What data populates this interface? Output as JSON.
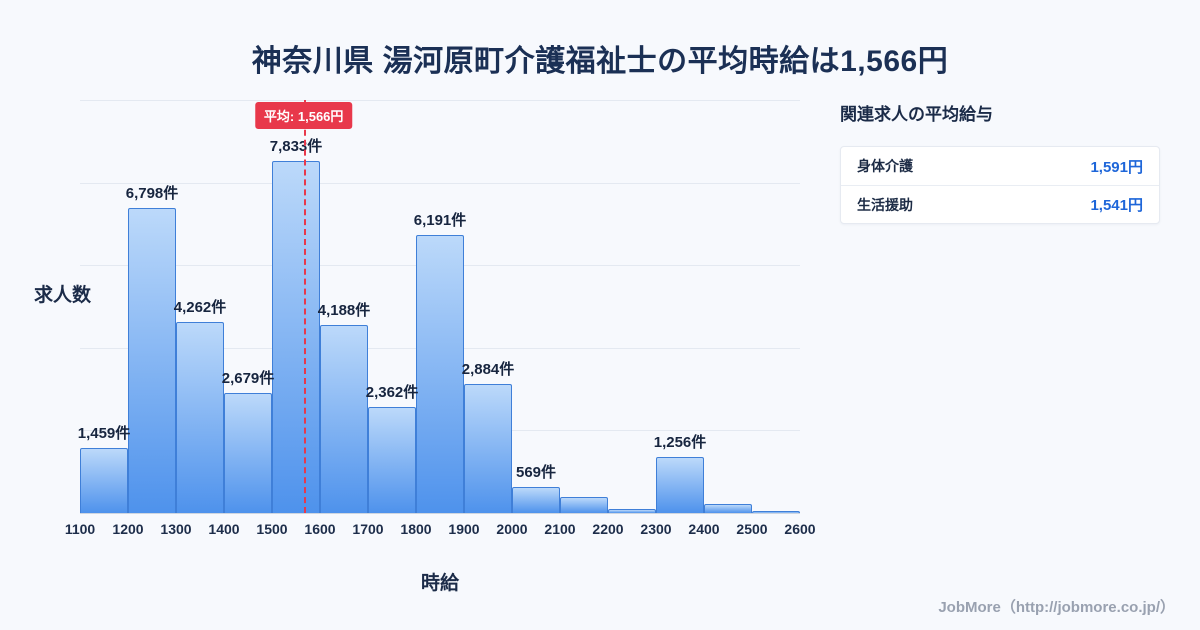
{
  "page": {
    "title": "神奈川県 湯河原町介護福祉士の平均時給は1,566円",
    "footer": "JobMore（http://jobmore.co.jp/）"
  },
  "chart_data": {
    "type": "bar",
    "title": "神奈川県 湯河原町介護福祉士の平均時給は1,566円",
    "xlabel": "時給",
    "ylabel": "求人数",
    "xlim": [
      1100,
      2600
    ],
    "ylim": [
      0,
      9200
    ],
    "grid": true,
    "legend": "none",
    "x_ticks": [
      "1100",
      "1200",
      "1300",
      "1400",
      "1500",
      "1600",
      "1700",
      "1800",
      "1900",
      "2000",
      "2100",
      "2200",
      "2300",
      "2400",
      "2500",
      "2600"
    ],
    "bins": [
      {
        "range": "1100-1200",
        "value": 1459,
        "label": "1,459件"
      },
      {
        "range": "1200-1300",
        "value": 6798,
        "label": "6,798件"
      },
      {
        "range": "1300-1400",
        "value": 4262,
        "label": "4,262件"
      },
      {
        "range": "1400-1500",
        "value": 2679,
        "label": "2,679件"
      },
      {
        "range": "1500-1600",
        "value": 7833,
        "label": "7,833件"
      },
      {
        "range": "1600-1700",
        "value": 4188,
        "label": "4,188件"
      },
      {
        "range": "1700-1800",
        "value": 2362,
        "label": "2,362件"
      },
      {
        "range": "1800-1900",
        "value": 6191,
        "label": "6,191件"
      },
      {
        "range": "1900-2000",
        "value": 2884,
        "label": "2,884件"
      },
      {
        "range": "2000-2100",
        "value": 569,
        "label": "569件"
      },
      {
        "range": "2100-2200",
        "value": 350,
        "label": "",
        "estimated": true
      },
      {
        "range": "2200-2300",
        "value": 80,
        "label": "",
        "estimated": true
      },
      {
        "range": "2300-2400",
        "value": 1256,
        "label": "1,256件"
      },
      {
        "range": "2400-2500",
        "value": 210,
        "label": "",
        "estimated": true
      },
      {
        "range": "2500-2600",
        "value": 45,
        "label": "",
        "estimated": true
      }
    ],
    "mean": {
      "value": 1566,
      "label": "平均: 1,566円"
    }
  },
  "side_panel": {
    "title": "関連求人の平均給与",
    "rows": [
      {
        "label": "身体介護",
        "value": "1,591円"
      },
      {
        "label": "生活援助",
        "value": "1,541円"
      }
    ]
  },
  "colors": {
    "background": "#f7f9fd",
    "title_text": "#1b3055",
    "bar_fill_top": "#bcd9fa",
    "bar_fill_bottom": "#4e92ec",
    "bar_border": "#3f7fd8",
    "mean_accent": "#e8384b",
    "value_accent": "#1e66d9",
    "gridline": "#e4e9f1",
    "footer_text": "#99a1b0"
  }
}
